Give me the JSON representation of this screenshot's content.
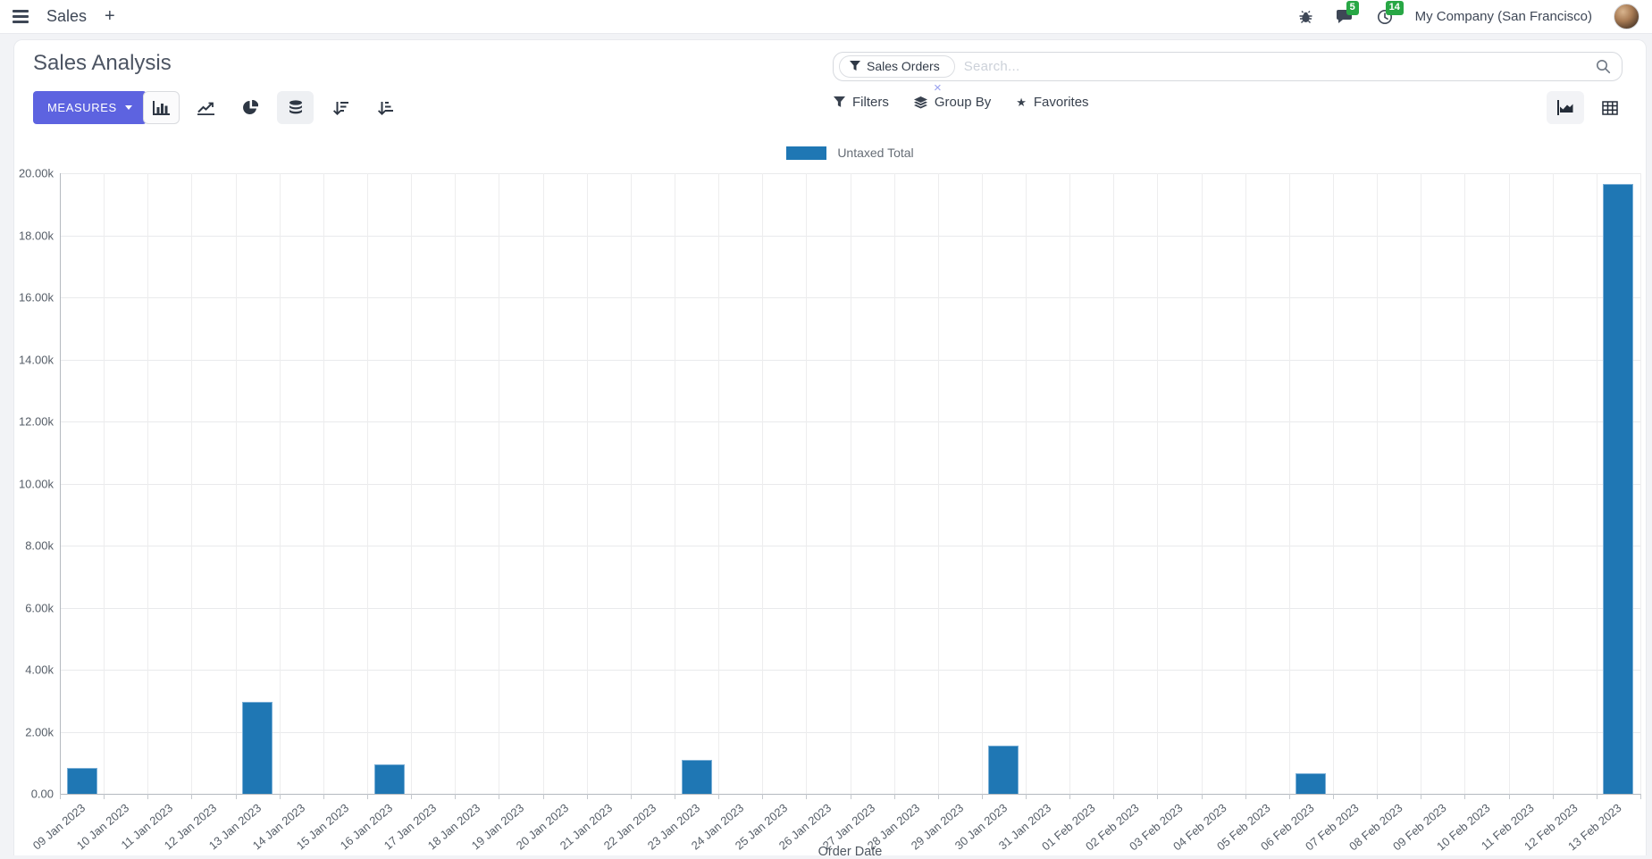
{
  "navbar": {
    "app_label": "Sales",
    "plus_label": "+",
    "messages_badge": "5",
    "activities_badge": "14",
    "company": "My Company (San Francisco)"
  },
  "control_panel": {
    "title": "Sales Analysis",
    "measures_label": "MEASURES",
    "search": {
      "facet_label": "Sales Orders",
      "facet_remove": "×",
      "placeholder": "Search..."
    },
    "filters_label": "Filters",
    "group_by_label": "Group By",
    "favorites_label": "Favorites"
  },
  "icons": {
    "top": [
      "menu-icon",
      "plus-icon",
      "bug-icon",
      "messages-icon",
      "activities-icon"
    ],
    "chart_types": [
      "bar-chart-icon",
      "line-chart-icon",
      "pie-chart-icon",
      "stacked-icon",
      "sort-descending-icon",
      "sort-ascending-icon"
    ],
    "search_row": [
      "filter-funnel-icon",
      "layers-icon",
      "star-icon",
      "search-icon"
    ],
    "view_switcher": [
      "graph-view-icon",
      "pivot-view-icon"
    ]
  },
  "colors": {
    "bar": "#1f77b4",
    "primary_button": "#5d63e0",
    "badge_green": "#28a745"
  },
  "chart_data": {
    "type": "bar",
    "title": "",
    "legend": [
      "Untaxed Total"
    ],
    "legend_position": "top",
    "grid": true,
    "xlabel": "Order Date",
    "ylabel": "",
    "ylim": [
      0,
      20000
    ],
    "ytick_labels": [
      "0.00",
      "2.00k",
      "4.00k",
      "6.00k",
      "8.00k",
      "10.00k",
      "12.00k",
      "14.00k",
      "16.00k",
      "18.00k",
      "20.00k"
    ],
    "categories": [
      "09 Jan 2023",
      "10 Jan 2023",
      "11 Jan 2023",
      "12 Jan 2023",
      "13 Jan 2023",
      "14 Jan 2023",
      "15 Jan 2023",
      "16 Jan 2023",
      "17 Jan 2023",
      "18 Jan 2023",
      "19 Jan 2023",
      "20 Jan 2023",
      "21 Jan 2023",
      "22 Jan 2023",
      "23 Jan 2023",
      "24 Jan 2023",
      "25 Jan 2023",
      "26 Jan 2023",
      "27 Jan 2023",
      "28 Jan 2023",
      "29 Jan 2023",
      "30 Jan 2023",
      "31 Jan 2023",
      "01 Feb 2023",
      "02 Feb 2023",
      "03 Feb 2023",
      "04 Feb 2023",
      "05 Feb 2023",
      "06 Feb 2023",
      "07 Feb 2023",
      "08 Feb 2023",
      "09 Feb 2023",
      "10 Feb 2023",
      "11 Feb 2023",
      "12 Feb 2023",
      "13 Feb 2023"
    ],
    "series": [
      {
        "name": "Untaxed Total",
        "color": "#1f77b4",
        "values": [
          830,
          0,
          0,
          0,
          2950,
          0,
          0,
          950,
          0,
          0,
          0,
          0,
          0,
          0,
          1100,
          0,
          0,
          0,
          0,
          0,
          0,
          1550,
          0,
          0,
          0,
          0,
          0,
          0,
          660,
          0,
          0,
          0,
          0,
          0,
          0,
          19650
        ]
      }
    ]
  }
}
